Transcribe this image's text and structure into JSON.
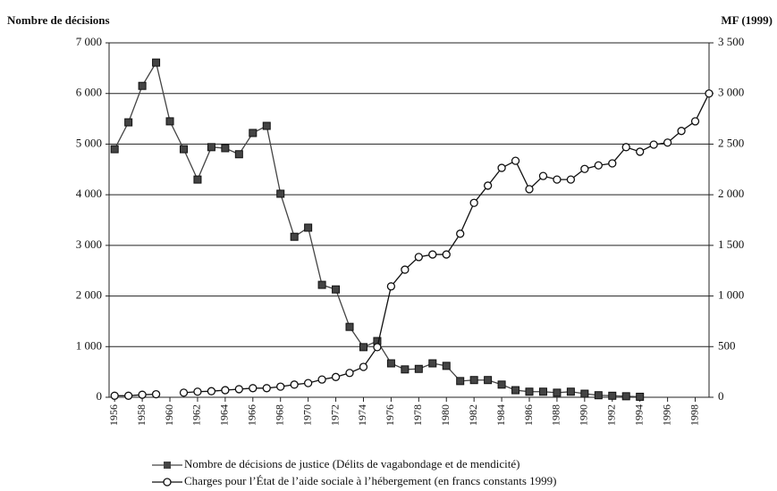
{
  "chart_data": {
    "type": "line",
    "y_label": "Nombre de décisions",
    "y2_label": "MF (1999)",
    "x": [
      1956,
      1957,
      1958,
      1959,
      1960,
      1961,
      1962,
      1963,
      1964,
      1965,
      1966,
      1967,
      1968,
      1969,
      1970,
      1971,
      1972,
      1973,
      1974,
      1975,
      1976,
      1977,
      1978,
      1979,
      1980,
      1981,
      1982,
      1983,
      1984,
      1985,
      1986,
      1987,
      1988,
      1989,
      1990,
      1991,
      1992,
      1993,
      1994,
      1995,
      1996,
      1997,
      1998,
      1999
    ],
    "xlim": [
      1955.6,
      1999
    ],
    "xticks": [
      1956,
      1958,
      1960,
      1962,
      1964,
      1966,
      1968,
      1970,
      1972,
      1974,
      1976,
      1978,
      1980,
      1982,
      1984,
      1986,
      1988,
      1990,
      1992,
      1994,
      1996,
      1998
    ],
    "ylim": [
      0,
      7000
    ],
    "yticks": [
      0,
      {
        "value": 1000,
        "label": "1 000"
      },
      {
        "value": 2000,
        "label": "2 000"
      },
      {
        "value": 3000,
        "label": "3 000"
      },
      {
        "value": 4000,
        "label": "4 000"
      },
      {
        "value": 5000,
        "label": "5 000"
      },
      {
        "value": 6000,
        "label": "6 000"
      },
      {
        "value": 7000,
        "label": "7 000"
      }
    ],
    "y2lim": [
      0,
      3500
    ],
    "y2ticks": [
      0,
      500,
      {
        "value": 1000,
        "label": "1 000"
      },
      {
        "value": 1500,
        "label": "1 500"
      },
      {
        "value": 2000,
        "label": "2 000"
      },
      {
        "value": 2500,
        "label": "2 500"
      },
      {
        "value": 3000,
        "label": "3 000"
      },
      {
        "value": 3500,
        "label": "3 500"
      }
    ],
    "grid": true,
    "series": [
      {
        "name": "Nombre de décisions de justice (Délits de vagabondage et de mendicité)",
        "color": "#444444",
        "marker": "square",
        "values": [
          4900,
          5430,
          6150,
          6610,
          5450,
          4900,
          4300,
          4940,
          4920,
          4800,
          5220,
          5360,
          4020,
          3170,
          3350,
          2220,
          2130,
          1390,
          990,
          1110,
          670,
          550,
          560,
          670,
          620,
          320,
          340,
          340,
          250,
          140,
          110,
          110,
          90,
          110,
          70,
          40,
          30,
          20,
          10,
          null,
          null,
          null,
          null,
          null
        ]
      },
      {
        "name": "Charges pour l’État de l’aide sociale à l’hébergement (en francs constants 1999)",
        "color": "#111111",
        "marker": "circle",
        "axis": "y2",
        "values": [
          15,
          15,
          25,
          30,
          null,
          45,
          55,
          60,
          70,
          80,
          90,
          90,
          105,
          125,
          140,
          175,
          200,
          240,
          300,
          495,
          1095,
          1260,
          1385,
          1410,
          1410,
          1615,
          1920,
          2090,
          2265,
          2335,
          2055,
          2185,
          2150,
          2150,
          2255,
          2290,
          2310,
          2470,
          2425,
          2495,
          2515,
          2630,
          2725,
          3000
        ]
      }
    ]
  }
}
